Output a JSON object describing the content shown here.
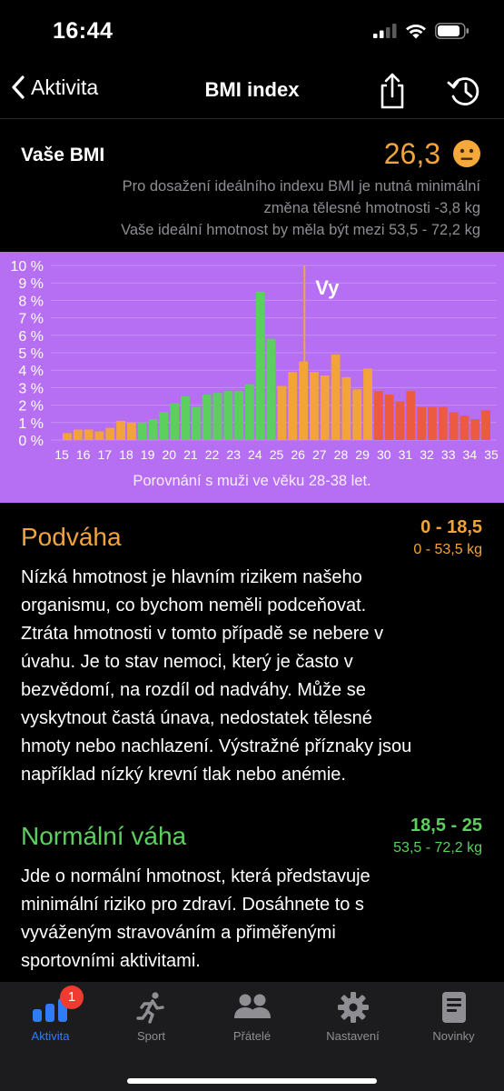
{
  "status": {
    "time": "16:44"
  },
  "nav": {
    "back_label": "Aktivita",
    "title": "BMI index"
  },
  "bmi": {
    "label": "Vaše BMI",
    "value": "26,3",
    "desc_line1": "Pro dosažení ideálního indexu BMI je nutná minimální",
    "desc_line2": "změna tělesné hmotnosti -3,8 kg",
    "desc_line3": "Vaše ideální hmotnost by měla být mezi 53,5 - 72,2 kg"
  },
  "colors": {
    "chart_bg": "#b66ef2",
    "underweight": "#f2a33a",
    "normal": "#5ccf5e",
    "overweight": "#f2a33a",
    "obese": "#ec5a3f",
    "accent": "#2f7cf6"
  },
  "chart_data": {
    "type": "bar",
    "marker_label": "Vy",
    "marker_value": 26.3,
    "caption": "Porovnání s muži ve věku 28-38 let.",
    "x_ticks": [
      "15",
      "16",
      "17",
      "18",
      "19",
      "20",
      "21",
      "22",
      "23",
      "24",
      "25",
      "26",
      "27",
      "28",
      "29",
      "30",
      "31",
      "32",
      "33",
      "34",
      "35"
    ],
    "y_ticks": [
      "0 %",
      "1 %",
      "2 %",
      "3 %",
      "4 %",
      "5 %",
      "6 %",
      "7 %",
      "8 %",
      "9 %",
      "10 %"
    ],
    "ylim": [
      0,
      10
    ],
    "xlim": [
      15,
      35
    ],
    "bin_width": 0.5,
    "bins": [
      {
        "x": 15.0,
        "value": 0.4,
        "category": "underweight"
      },
      {
        "x": 15.5,
        "value": 0.6,
        "category": "underweight"
      },
      {
        "x": 16.0,
        "value": 0.6,
        "category": "underweight"
      },
      {
        "x": 16.5,
        "value": 0.5,
        "category": "underweight"
      },
      {
        "x": 17.0,
        "value": 0.7,
        "category": "underweight"
      },
      {
        "x": 17.5,
        "value": 1.1,
        "category": "underweight"
      },
      {
        "x": 18.0,
        "value": 1.0,
        "category": "underweight"
      },
      {
        "x": 18.5,
        "value": 1.0,
        "category": "normal"
      },
      {
        "x": 19.0,
        "value": 1.2,
        "category": "normal"
      },
      {
        "x": 19.5,
        "value": 1.6,
        "category": "normal"
      },
      {
        "x": 20.0,
        "value": 2.1,
        "category": "normal"
      },
      {
        "x": 20.5,
        "value": 2.5,
        "category": "normal"
      },
      {
        "x": 21.0,
        "value": 1.9,
        "category": "normal"
      },
      {
        "x": 21.5,
        "value": 2.6,
        "category": "normal"
      },
      {
        "x": 22.0,
        "value": 2.7,
        "category": "normal"
      },
      {
        "x": 22.5,
        "value": 2.8,
        "category": "normal"
      },
      {
        "x": 23.0,
        "value": 2.8,
        "category": "normal"
      },
      {
        "x": 23.5,
        "value": 3.2,
        "category": "normal"
      },
      {
        "x": 24.0,
        "value": 8.5,
        "category": "normal"
      },
      {
        "x": 24.5,
        "value": 5.8,
        "category": "normal"
      },
      {
        "x": 25.0,
        "value": 3.1,
        "category": "overweight"
      },
      {
        "x": 25.5,
        "value": 3.9,
        "category": "overweight"
      },
      {
        "x": 26.0,
        "value": 4.5,
        "category": "overweight"
      },
      {
        "x": 26.5,
        "value": 3.9,
        "category": "overweight"
      },
      {
        "x": 27.0,
        "value": 3.7,
        "category": "overweight"
      },
      {
        "x": 27.5,
        "value": 4.9,
        "category": "overweight"
      },
      {
        "x": 28.0,
        "value": 3.6,
        "category": "overweight"
      },
      {
        "x": 28.5,
        "value": 2.9,
        "category": "overweight"
      },
      {
        "x": 29.0,
        "value": 4.1,
        "category": "overweight"
      },
      {
        "x": 29.5,
        "value": 2.8,
        "category": "obese"
      },
      {
        "x": 30.0,
        "value": 2.6,
        "category": "obese"
      },
      {
        "x": 30.5,
        "value": 2.2,
        "category": "obese"
      },
      {
        "x": 31.0,
        "value": 2.8,
        "category": "obese"
      },
      {
        "x": 31.5,
        "value": 1.9,
        "category": "obese"
      },
      {
        "x": 32.0,
        "value": 1.9,
        "category": "obese"
      },
      {
        "x": 32.5,
        "value": 1.9,
        "category": "obese"
      },
      {
        "x": 33.0,
        "value": 1.6,
        "category": "obese"
      },
      {
        "x": 33.5,
        "value": 1.4,
        "category": "obese"
      },
      {
        "x": 34.0,
        "value": 1.2,
        "category": "obese"
      },
      {
        "x": 34.5,
        "value": 1.7,
        "category": "obese"
      }
    ]
  },
  "sections": {
    "underweight": {
      "title": "Podváha",
      "range": "0 - 18,5",
      "weight": "0 - 53,5 kg",
      "lines": [
        "Nízká hmotnost je hlavním rizikem našeho",
        "organismu, co bychom neměli podceňovat.",
        "Ztráta hmotnosti v tomto případě se nebere v",
        "úvahu. Je to stav nemoci, který je často v",
        "bezvědomí, na rozdíl od nadváhy. Může se",
        "vyskytnout častá únava, nedostatek tělesné",
        "hmoty nebo nachlazení. Výstražné příznaky jsou",
        "například nízký krevní tlak nebo anémie."
      ]
    },
    "normal": {
      "title": "Normální váha",
      "range": "18,5 - 25",
      "weight": "53,5 - 72,2 kg",
      "lines": [
        "Jde o normální hmotnost, která představuje",
        "minimální riziko pro zdraví. Dosáhnete to s",
        "vyváženým stravováním a přiměřenými",
        "sportovními aktivitami."
      ]
    }
  },
  "tabs": {
    "activity": {
      "label": "Aktivita",
      "badge": "1",
      "icon": "bar-chart-icon"
    },
    "sport": {
      "label": "Sport",
      "icon": "runner-icon"
    },
    "friends": {
      "label": "Přátelé",
      "icon": "people-icon"
    },
    "settings": {
      "label": "Nastavení",
      "icon": "gear-icon"
    },
    "news": {
      "label": "Novinky",
      "icon": "document-icon"
    }
  }
}
